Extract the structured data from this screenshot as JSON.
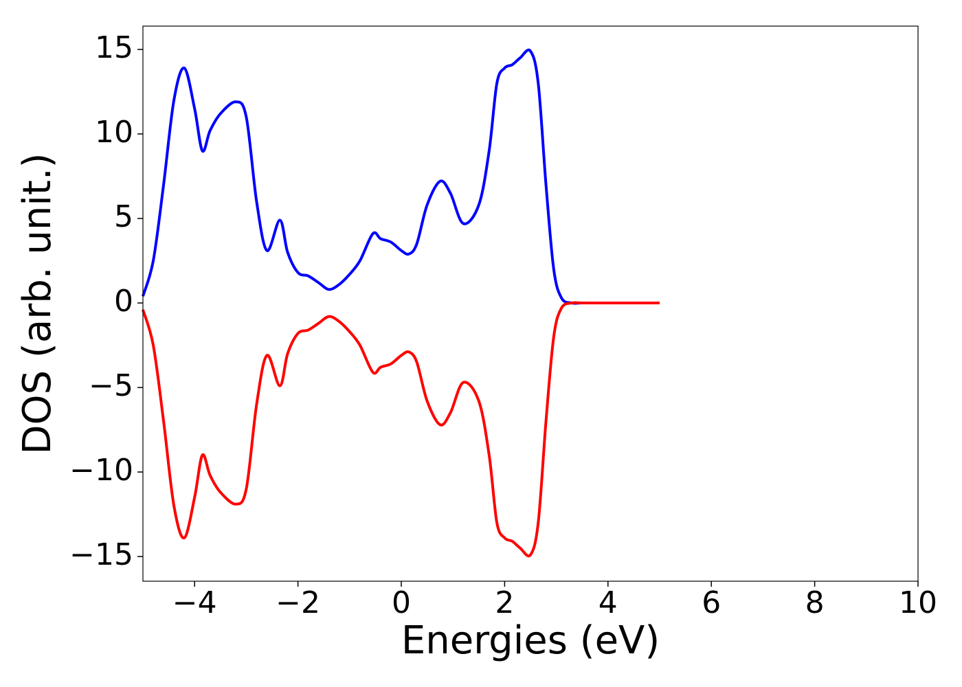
{
  "chart_data": {
    "type": "line",
    "x_label": "Energies (eV)",
    "y_label": "DOS (arb. unit.)",
    "x": [
      -5,
      -4.8,
      -4.6,
      -4.4,
      -4.2,
      -4.0,
      -3.85,
      -3.7,
      -3.5,
      -3.2,
      -3.0,
      -2.8,
      -2.6,
      -2.35,
      -2.2,
      -2.0,
      -1.8,
      -1.6,
      -1.4,
      -1.2,
      -1.0,
      -0.8,
      -0.55,
      -0.4,
      -0.2,
      0.0,
      0.15,
      0.3,
      0.5,
      0.75,
      0.95,
      1.2,
      1.5,
      1.7,
      1.85,
      2.0,
      2.15,
      2.3,
      2.5,
      2.65,
      2.8,
      2.95,
      3.1,
      3.3,
      3.5,
      4.0,
      5.0
    ],
    "series": [
      {
        "color": "#0000ff",
        "values": [
          0.4,
          2.5,
          7,
          12,
          13.9,
          11.5,
          9,
          10.2,
          11.2,
          11.9,
          11,
          6,
          3.1,
          4.9,
          3,
          1.8,
          1.6,
          1.2,
          0.8,
          1.1,
          1.7,
          2.5,
          4.1,
          3.8,
          3.6,
          3.1,
          2.9,
          3.5,
          5.8,
          7.2,
          6.5,
          4.7,
          5.8,
          9,
          13,
          13.9,
          14.1,
          14.5,
          14.9,
          13,
          7,
          2,
          0.3,
          0,
          0,
          0,
          0
        ]
      },
      {
        "color": "#ff0000",
        "values": [
          -0.4,
          -2.5,
          -7,
          -12,
          -13.9,
          -11.5,
          -9,
          -10.2,
          -11.2,
          -11.9,
          -11,
          -6,
          -3.1,
          -4.9,
          -3,
          -1.8,
          -1.6,
          -1.2,
          -0.8,
          -1.1,
          -1.7,
          -2.5,
          -4.1,
          -3.8,
          -3.6,
          -3.1,
          -2.9,
          -3.5,
          -5.8,
          -7.2,
          -6.5,
          -4.7,
          -5.8,
          -9,
          -13,
          -13.9,
          -14.1,
          -14.5,
          -14.9,
          -13,
          -7,
          -2,
          -0.3,
          0,
          0,
          0,
          0
        ]
      }
    ],
    "xlim": [
      -5,
      10
    ],
    "xticks": [
      {
        "value": -4,
        "label": "−4"
      },
      {
        "value": -2,
        "label": "−2"
      },
      0,
      2,
      4,
      6,
      8,
      10
    ],
    "ylim": [
      -16.46,
      16.38
    ],
    "yticks": [
      {
        "value": -15,
        "label": "−15"
      },
      {
        "value": -10,
        "label": "−10"
      },
      {
        "value": -5,
        "label": "−5"
      },
      0,
      5,
      10,
      15
    ]
  }
}
